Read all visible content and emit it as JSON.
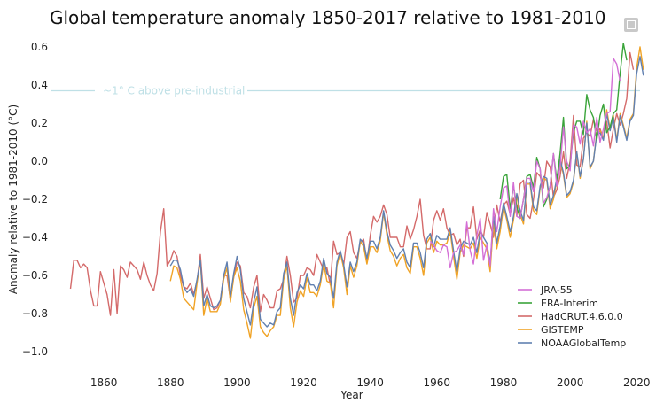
{
  "page": {
    "title": "Global temperature anomaly 1850-2017 relative to 1981-2010",
    "expand_icon": "expand-icon"
  },
  "chart_data": {
    "type": "line",
    "title": "Global temperature anomaly 1850-2017 relative to 1981-2010",
    "xlabel": "Year",
    "ylabel": "Anomaly relative to 1981-2010 (°C)",
    "xlim": [
      1848,
      2021
    ],
    "ylim": [
      -1.07,
      0.67
    ],
    "xticks": [
      1860,
      1880,
      1900,
      1920,
      1940,
      1960,
      1980,
      2000,
      2020
    ],
    "yticks": [
      -1.0,
      -0.8,
      -0.6,
      -0.4,
      -0.2,
      0.0,
      0.2,
      0.4,
      0.6
    ],
    "grid": false,
    "legend_position": "lower-right",
    "reference_line": {
      "y": 0.37,
      "label": "~1° C above pre-industrial",
      "color": "#bfe0e6"
    },
    "series": [
      {
        "name": "JRA-55",
        "color": "#d46fd6",
        "start_year": 1958,
        "values": [
          -0.42,
          -0.44,
          -0.47,
          -0.48,
          -0.44,
          -0.45,
          -0.56,
          -0.48,
          -0.47,
          -0.44,
          -0.49,
          -0.32,
          -0.47,
          -0.54,
          -0.39,
          -0.3,
          -0.52,
          -0.44,
          -0.55,
          -0.25,
          -0.37,
          -0.24,
          -0.14,
          -0.13,
          -0.29,
          -0.11,
          -0.29,
          -0.3,
          -0.2,
          -0.09,
          -0.09,
          -0.16,
          0.0,
          -0.04,
          -0.22,
          -0.19,
          -0.13,
          0.04,
          -0.13,
          -0.03,
          0.18,
          0.0,
          -0.05,
          0.19,
          0.18,
          0.09,
          0.21,
          0.15,
          0.17,
          0.08,
          0.23,
          0.1,
          0.17,
          0.25,
          0.26,
          0.54,
          0.51,
          0.42
        ]
      },
      {
        "name": "ERA-Interim",
        "color": "#3aa43a",
        "start_year": 1979,
        "values": [
          -0.2,
          -0.08,
          -0.07,
          -0.25,
          -0.13,
          -0.24,
          -0.3,
          -0.2,
          -0.08,
          -0.07,
          -0.14,
          0.02,
          -0.04,
          -0.24,
          -0.2,
          -0.13,
          0.04,
          -0.1,
          0.04,
          0.23,
          -0.04,
          -0.02,
          0.15,
          0.21,
          0.21,
          0.14,
          0.35,
          0.27,
          0.23,
          0.11,
          0.24,
          0.3,
          0.15,
          0.18,
          0.25,
          0.27,
          0.46,
          0.62,
          0.53
        ]
      },
      {
        "name": "HadCRUT.4.6.0.0",
        "color": "#d46a6a",
        "start_year": 1850,
        "values": [
          -0.67,
          -0.52,
          -0.52,
          -0.56,
          -0.54,
          -0.56,
          -0.68,
          -0.76,
          -0.76,
          -0.58,
          -0.64,
          -0.7,
          -0.81,
          -0.57,
          -0.8,
          -0.55,
          -0.57,
          -0.61,
          -0.53,
          -0.55,
          -0.57,
          -0.62,
          -0.53,
          -0.6,
          -0.65,
          -0.68,
          -0.59,
          -0.37,
          -0.25,
          -0.55,
          -0.52,
          -0.47,
          -0.5,
          -0.6,
          -0.66,
          -0.67,
          -0.64,
          -0.7,
          -0.63,
          -0.49,
          -0.72,
          -0.66,
          -0.72,
          -0.78,
          -0.77,
          -0.73,
          -0.6,
          -0.6,
          -0.73,
          -0.61,
          -0.53,
          -0.55,
          -0.69,
          -0.71,
          -0.77,
          -0.66,
          -0.6,
          -0.79,
          -0.7,
          -0.73,
          -0.77,
          -0.77,
          -0.68,
          -0.67,
          -0.62,
          -0.5,
          -0.6,
          -0.74,
          -0.72,
          -0.6,
          -0.6,
          -0.56,
          -0.57,
          -0.6,
          -0.49,
          -0.53,
          -0.57,
          -0.56,
          -0.65,
          -0.42,
          -0.49,
          -0.48,
          -0.55,
          -0.4,
          -0.37,
          -0.48,
          -0.51,
          -0.43,
          -0.41,
          -0.53,
          -0.39,
          -0.29,
          -0.32,
          -0.29,
          -0.23,
          -0.28,
          -0.4,
          -0.4,
          -0.4,
          -0.45,
          -0.45,
          -0.34,
          -0.41,
          -0.36,
          -0.29,
          -0.2,
          -0.39,
          -0.46,
          -0.46,
          -0.31,
          -0.26,
          -0.31,
          -0.25,
          -0.35,
          -0.39,
          -0.38,
          -0.44,
          -0.41,
          -0.5,
          -0.35,
          -0.35,
          -0.24,
          -0.41,
          -0.36,
          -0.4,
          -0.27,
          -0.33,
          -0.4,
          -0.23,
          -0.32,
          -0.23,
          -0.21,
          -0.28,
          -0.19,
          -0.29,
          -0.12,
          -0.1,
          -0.28,
          -0.3,
          -0.2,
          -0.06,
          -0.08,
          -0.14,
          0.0,
          -0.03,
          -0.19,
          -0.15,
          -0.08,
          0.05,
          -0.09,
          0.0,
          0.24,
          -0.02,
          -0.03,
          0.12,
          0.15,
          0.13,
          0.22,
          0.16,
          0.17,
          0.12,
          0.21,
          0.07,
          0.17,
          0.25,
          0.19,
          0.25,
          0.33,
          0.57,
          0.48
        ]
      },
      {
        "name": "GISTEMP",
        "color": "#f0a326",
        "start_year": 1880,
        "values": [
          -0.63,
          -0.55,
          -0.56,
          -0.62,
          -0.72,
          -0.74,
          -0.76,
          -0.78,
          -0.64,
          -0.52,
          -0.81,
          -0.72,
          -0.79,
          -0.79,
          -0.79,
          -0.75,
          -0.62,
          -0.56,
          -0.74,
          -0.61,
          -0.56,
          -0.63,
          -0.78,
          -0.85,
          -0.93,
          -0.77,
          -0.71,
          -0.87,
          -0.9,
          -0.92,
          -0.89,
          -0.87,
          -0.81,
          -0.81,
          -0.62,
          -0.55,
          -0.77,
          -0.87,
          -0.74,
          -0.68,
          -0.71,
          -0.61,
          -0.69,
          -0.69,
          -0.71,
          -0.65,
          -0.54,
          -0.63,
          -0.64,
          -0.77,
          -0.55,
          -0.48,
          -0.56,
          -0.7,
          -0.55,
          -0.61,
          -0.55,
          -0.42,
          -0.45,
          -0.54,
          -0.45,
          -0.45,
          -0.48,
          -0.42,
          -0.27,
          -0.39,
          -0.47,
          -0.5,
          -0.55,
          -0.51,
          -0.49,
          -0.56,
          -0.59,
          -0.45,
          -0.45,
          -0.51,
          -0.6,
          -0.43,
          -0.4,
          -0.48,
          -0.42,
          -0.44,
          -0.44,
          -0.43,
          -0.37,
          -0.5,
          -0.62,
          -0.48,
          -0.44,
          -0.45,
          -0.46,
          -0.43,
          -0.51,
          -0.4,
          -0.43,
          -0.46,
          -0.58,
          -0.32,
          -0.46,
          -0.37,
          -0.24,
          -0.31,
          -0.4,
          -0.31,
          -0.18,
          -0.28,
          -0.33,
          -0.12,
          -0.12,
          -0.26,
          -0.28,
          -0.14,
          -0.09,
          -0.1,
          -0.25,
          -0.2,
          -0.1,
          0.0,
          -0.07,
          -0.19,
          -0.17,
          -0.11,
          0.05,
          -0.09,
          0.01,
          0.21,
          -0.04,
          0.0,
          0.15,
          0.16,
          0.12,
          0.27,
          0.17,
          0.24,
          0.11,
          0.25,
          0.19,
          0.12,
          0.22,
          0.25,
          0.49,
          0.6,
          0.48
        ]
      },
      {
        "name": "NOAAGlobalTemp",
        "color": "#6180b0",
        "start_year": 1880,
        "values": [
          -0.55,
          -0.52,
          -0.52,
          -0.57,
          -0.66,
          -0.69,
          -0.67,
          -0.71,
          -0.62,
          -0.52,
          -0.76,
          -0.7,
          -0.76,
          -0.77,
          -0.76,
          -0.73,
          -0.6,
          -0.53,
          -0.71,
          -0.59,
          -0.5,
          -0.57,
          -0.72,
          -0.79,
          -0.86,
          -0.74,
          -0.66,
          -0.83,
          -0.85,
          -0.87,
          -0.85,
          -0.86,
          -0.79,
          -0.77,
          -0.59,
          -0.53,
          -0.72,
          -0.81,
          -0.69,
          -0.65,
          -0.67,
          -0.59,
          -0.65,
          -0.65,
          -0.68,
          -0.63,
          -0.51,
          -0.59,
          -0.61,
          -0.72,
          -0.53,
          -0.47,
          -0.54,
          -0.66,
          -0.53,
          -0.58,
          -0.53,
          -0.41,
          -0.43,
          -0.51,
          -0.42,
          -0.42,
          -0.46,
          -0.4,
          -0.26,
          -0.37,
          -0.44,
          -0.47,
          -0.51,
          -0.48,
          -0.46,
          -0.53,
          -0.56,
          -0.43,
          -0.43,
          -0.48,
          -0.56,
          -0.41,
          -0.38,
          -0.45,
          -0.39,
          -0.41,
          -0.41,
          -0.41,
          -0.35,
          -0.47,
          -0.58,
          -0.46,
          -0.42,
          -0.43,
          -0.44,
          -0.4,
          -0.48,
          -0.37,
          -0.4,
          -0.43,
          -0.54,
          -0.29,
          -0.43,
          -0.34,
          -0.22,
          -0.29,
          -0.37,
          -0.29,
          -0.17,
          -0.26,
          -0.31,
          -0.11,
          -0.11,
          -0.24,
          -0.26,
          -0.13,
          -0.08,
          -0.09,
          -0.23,
          -0.18,
          -0.09,
          0.01,
          -0.06,
          -0.18,
          -0.16,
          -0.1,
          0.05,
          -0.08,
          0.01,
          0.2,
          -0.03,
          0.0,
          0.14,
          0.15,
          0.11,
          0.25,
          0.16,
          0.23,
          0.1,
          0.24,
          0.18,
          0.11,
          0.21,
          0.24,
          0.46,
          0.55,
          0.45
        ]
      }
    ]
  }
}
